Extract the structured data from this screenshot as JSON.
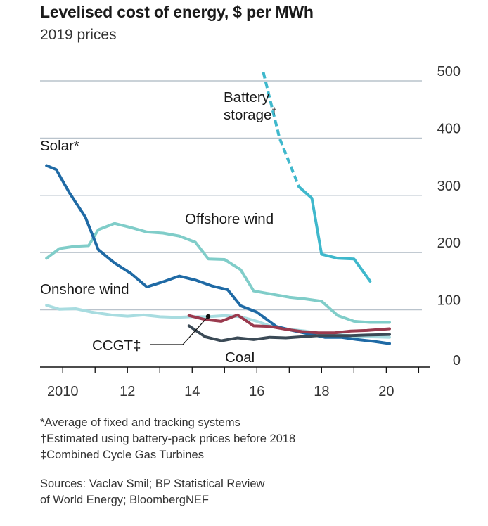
{
  "chart_data": {
    "type": "line",
    "title": "Levelised cost of energy, $ per MWh",
    "subtitle": "2019 prices",
    "ylim": [
      0,
      500
    ],
    "xlim": [
      2009.3,
      2021.1
    ],
    "y_ticks": [
      0,
      100,
      200,
      300,
      400,
      500
    ],
    "y_tick_labels": [
      "0",
      "100",
      "200",
      "300",
      "400",
      "500"
    ],
    "x_tick_labels": [
      {
        "x": 2010,
        "label": "2010"
      },
      {
        "x": 2012,
        "label": "12"
      },
      {
        "x": 2014,
        "label": "14"
      },
      {
        "x": 2016,
        "label": "16"
      },
      {
        "x": 2018,
        "label": "18"
      },
      {
        "x": 2020,
        "label": "20"
      }
    ],
    "series": [
      {
        "name": "Onshore wind",
        "label": "Onshore wind",
        "color": "#a8dce0",
        "points": [
          [
            2009.5,
            108
          ],
          [
            2009.9,
            101
          ],
          [
            2010.4,
            102
          ],
          [
            2010.9,
            96
          ],
          [
            2011.5,
            91
          ],
          [
            2012.0,
            89
          ],
          [
            2012.5,
            91
          ],
          [
            2013.0,
            88
          ],
          [
            2013.5,
            87
          ],
          [
            2014.0,
            88
          ],
          [
            2014.5,
            88
          ],
          [
            2015.0,
            90
          ],
          [
            2015.5,
            88
          ],
          [
            2016.0,
            80
          ],
          [
            2016.4,
            72
          ],
          [
            2017.0,
            66
          ],
          [
            2017.5,
            63
          ],
          [
            2018.0,
            58
          ],
          [
            2018.5,
            57
          ],
          [
            2019.0,
            54
          ],
          [
            2019.5,
            53
          ],
          [
            2020.1,
            52
          ]
        ]
      },
      {
        "name": "Offshore wind",
        "label": "Offshore wind",
        "color": "#80cdc9",
        "points": [
          [
            2009.5,
            190
          ],
          [
            2009.9,
            207
          ],
          [
            2010.4,
            211
          ],
          [
            2010.8,
            212
          ],
          [
            2011.1,
            240
          ],
          [
            2011.6,
            251
          ],
          [
            2012.1,
            244
          ],
          [
            2012.6,
            236
          ],
          [
            2013.1,
            234
          ],
          [
            2013.6,
            229
          ],
          [
            2014.1,
            218
          ],
          [
            2014.5,
            189
          ],
          [
            2015.0,
            188
          ],
          [
            2015.5,
            170
          ],
          [
            2015.9,
            133
          ],
          [
            2016.5,
            127
          ],
          [
            2017.0,
            122
          ],
          [
            2017.5,
            119
          ],
          [
            2018.0,
            115
          ],
          [
            2018.5,
            90
          ],
          [
            2019.0,
            80
          ],
          [
            2019.5,
            78
          ],
          [
            2020.1,
            78
          ]
        ]
      },
      {
        "name": "Solar",
        "label": "Solar*",
        "color": "#1f6aa5",
        "points": [
          [
            2009.5,
            352
          ],
          [
            2009.8,
            345
          ],
          [
            2010.2,
            305
          ],
          [
            2010.7,
            262
          ],
          [
            2011.1,
            205
          ],
          [
            2011.6,
            182
          ],
          [
            2012.1,
            164
          ],
          [
            2012.6,
            140
          ],
          [
            2013.1,
            149
          ],
          [
            2013.6,
            159
          ],
          [
            2014.1,
            152
          ],
          [
            2014.6,
            142
          ],
          [
            2015.1,
            135
          ],
          [
            2015.5,
            107
          ],
          [
            2016.0,
            96
          ],
          [
            2016.6,
            71
          ],
          [
            2017.1,
            64
          ],
          [
            2017.6,
            58
          ],
          [
            2018.1,
            52
          ],
          [
            2018.6,
            52
          ],
          [
            2019.1,
            48
          ],
          [
            2019.6,
            45
          ],
          [
            2020.1,
            41
          ]
        ]
      },
      {
        "name": "CCGT",
        "label": "CCGT‡",
        "color": "#9a3a4e",
        "points": [
          [
            2013.9,
            90
          ],
          [
            2014.4,
            83
          ],
          [
            2014.9,
            80
          ],
          [
            2015.4,
            91
          ],
          [
            2015.9,
            72
          ],
          [
            2016.4,
            71
          ],
          [
            2016.9,
            66
          ],
          [
            2017.4,
            62
          ],
          [
            2017.9,
            60
          ],
          [
            2018.4,
            60
          ],
          [
            2018.9,
            63
          ],
          [
            2019.4,
            64
          ],
          [
            2020.1,
            67
          ]
        ]
      },
      {
        "name": "Coal",
        "label": "Coal",
        "color": "#3b4a56",
        "points": [
          [
            2013.9,
            72
          ],
          [
            2014.4,
            53
          ],
          [
            2014.9,
            46
          ],
          [
            2015.4,
            51
          ],
          [
            2015.9,
            48
          ],
          [
            2016.4,
            52
          ],
          [
            2016.9,
            51
          ],
          [
            2017.4,
            53
          ],
          [
            2017.9,
            55
          ],
          [
            2018.4,
            55
          ],
          [
            2018.9,
            55
          ],
          [
            2019.4,
            56
          ],
          [
            2020.1,
            57
          ]
        ]
      },
      {
        "name": "Battery storage",
        "label": "Battery storage†",
        "color": "#3fb8cc",
        "dashed_until": 2017.3,
        "points": [
          [
            2016.2,
            515
          ],
          [
            2016.7,
            400
          ],
          [
            2017.3,
            315
          ],
          [
            2017.7,
            295
          ],
          [
            2018.0,
            197
          ],
          [
            2018.5,
            190
          ],
          [
            2019.0,
            189
          ],
          [
            2019.5,
            150
          ]
        ]
      }
    ]
  },
  "labels": {
    "battery_line1": "Battery",
    "battery_line2": "storage",
    "battery_mark": "†",
    "solar": "Solar*",
    "offshore": "Offshore wind",
    "onshore": "Onshore wind",
    "ccgt": "CCGT‡",
    "coal": "Coal"
  },
  "notes": [
    "*Average of fixed and tracking systems",
    "†Estimated using battery-pack prices before 2018",
    "‡Combined Cycle Gas Turbines"
  ],
  "sources": [
    "Sources: Vaclav Smil; BP Statistical Review",
    "of World Energy; BloombergNEF"
  ]
}
